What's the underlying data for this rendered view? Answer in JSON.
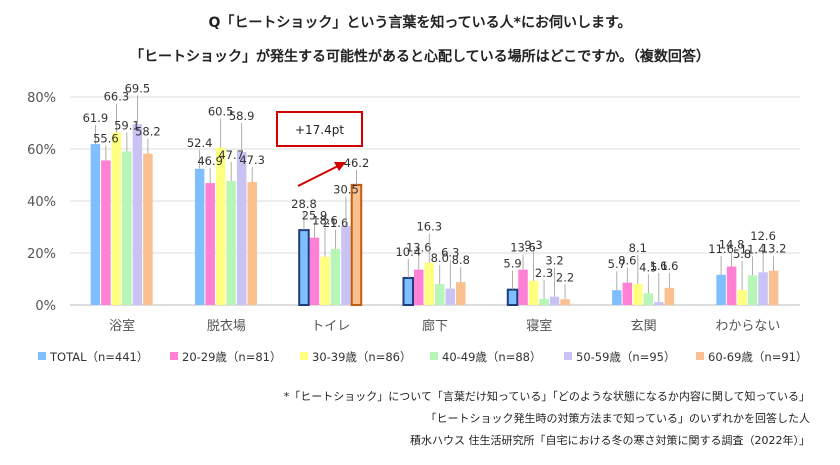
{
  "header": {
    "line1": "Q「ヒートショック」という言葉を知っている人*にお伺いします。",
    "line2": "「ヒートショック」が発生する可能性があると心配している場所はどこですか。（複数回答）"
  },
  "notes": {
    "line1": "*「ヒートショック」について「言葉だけ知っている」「どのような状態になるか内容に関して知っている」",
    "line2": "「ヒートショック発生時の対策方法まで知っている」のいずれかを回答した人",
    "line3": "積水ハウス 住生活研究所「自宅における冬の寒さ対策に関する調査（2022年）」"
  },
  "annotation": {
    "text": "+17.4pt"
  },
  "chart_data": {
    "type": "bar",
    "title": "",
    "xlabel": "",
    "ylabel": "",
    "ylim": [
      0,
      80
    ],
    "yticks": [
      "0%",
      "20%",
      "40%",
      "60%",
      "80%"
    ],
    "grid": true,
    "legend_position": "bottom",
    "categories": [
      "浴室",
      "脱衣場",
      "トイレ",
      "廊下",
      "寝室",
      "玄関",
      "わからない"
    ],
    "series": [
      {
        "name": "TOTAL（n=441）",
        "color": "#7fbfff",
        "values": [
          61.9,
          52.4,
          28.8,
          10.4,
          5.9,
          5.7,
          11.6
        ]
      },
      {
        "name": "20-29歳（n=81）",
        "color": "#ff80d5",
        "values": [
          55.6,
          46.9,
          25.9,
          13.6,
          13.6,
          8.6,
          14.8
        ]
      },
      {
        "name": "30-39歳（n=86）",
        "color": "#ffff80",
        "values": [
          66.3,
          60.5,
          18.6,
          16.3,
          9.3,
          8.1,
          5.8
        ]
      },
      {
        "name": "40-49歳（n=88）",
        "color": "#b8f5b8",
        "values": [
          59.1,
          47.7,
          21.6,
          8.0,
          2.3,
          4.5,
          11.4
        ]
      },
      {
        "name": "50-59歳（n=95）",
        "color": "#c9c3f5",
        "values": [
          69.5,
          58.9,
          30.5,
          6.3,
          3.2,
          1.1,
          12.6
        ]
      },
      {
        "name": "60-69歳（n=91）",
        "color": "#fac090",
        "values": [
          58.2,
          47.3,
          46.2,
          8.8,
          2.2,
          6.6,
          13.2
        ]
      }
    ]
  }
}
